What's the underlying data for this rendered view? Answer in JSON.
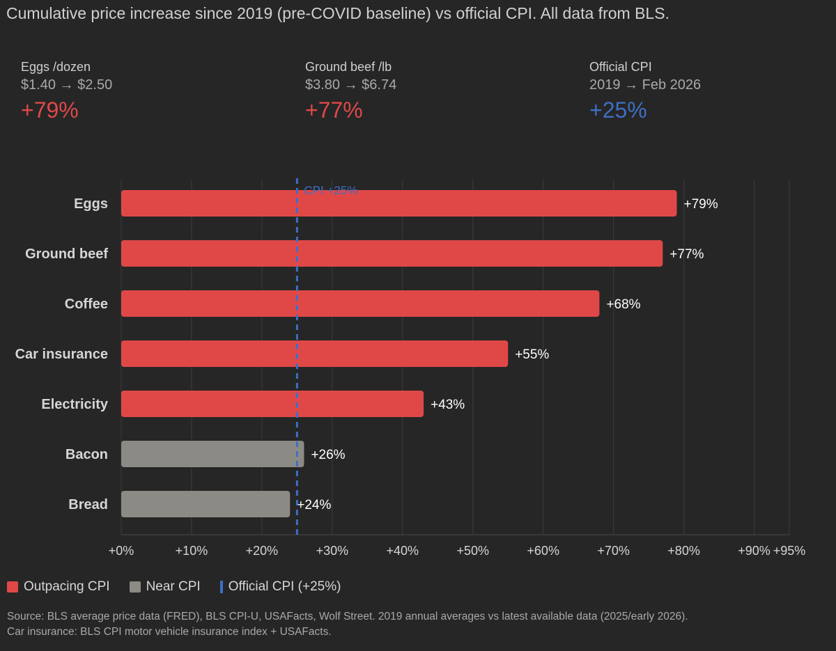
{
  "colors": {
    "outpacing": "#e04848",
    "near": "#8b8a84",
    "cpi": "#3e6fc4",
    "grid": "#3c3c3c",
    "text": "#d6d6d6"
  },
  "stats": [
    {
      "label": "Eggs /dozen",
      "sub": "$1.40 → $2.50",
      "pct": "+79%",
      "color": "#e04848"
    },
    {
      "label": "Ground beef /lb",
      "sub": "$3.80 → $6.74",
      "pct": "+77%",
      "color": "#e04848"
    },
    {
      "label": "Official CPI",
      "sub": "2019 → Feb 2026",
      "pct": "+25%",
      "color": "#3e6fc4"
    }
  ],
  "legend": {
    "outpacing": "Outpacing CPI",
    "near": "Near CPI",
    "cpi": "Official CPI (+25%)"
  },
  "source": {
    "line1": "Source: BLS average price data (FRED), BLS CPI-U, USAFacts, Wolf Street. 2019 annual averages vs latest available data (2025/early 2026).",
    "line2": "Car insurance: BLS CPI motor vehicle insurance index + USAFacts."
  },
  "chart_data": {
    "type": "bar",
    "orientation": "horizontal",
    "title": "Cumulative price increase since 2019 (pre-COVID baseline) vs official CPI. All data from BLS.",
    "categories": [
      "Eggs",
      "Ground beef",
      "Coffee",
      "Car insurance",
      "Electricity",
      "Bacon",
      "Bread"
    ],
    "values": [
      79,
      77,
      68,
      55,
      43,
      26,
      24
    ],
    "value_labels": [
      "+79%",
      "+77%",
      "+68%",
      "+55%",
      "+43%",
      "+26%",
      "+24%"
    ],
    "groups": [
      "outpacing",
      "outpacing",
      "outpacing",
      "outpacing",
      "outpacing",
      "near",
      "near"
    ],
    "xlim": [
      0,
      95
    ],
    "xticks": [
      0,
      10,
      20,
      30,
      40,
      50,
      60,
      70,
      80,
      90,
      95
    ],
    "xtick_labels": [
      "+0%",
      "+10%",
      "+20%",
      "+30%",
      "+40%",
      "+50%",
      "+60%",
      "+70%",
      "+80%",
      "+90%",
      "+95%"
    ],
    "reference_line": {
      "value": 25,
      "label": "CPI +25%"
    },
    "grid": true
  }
}
